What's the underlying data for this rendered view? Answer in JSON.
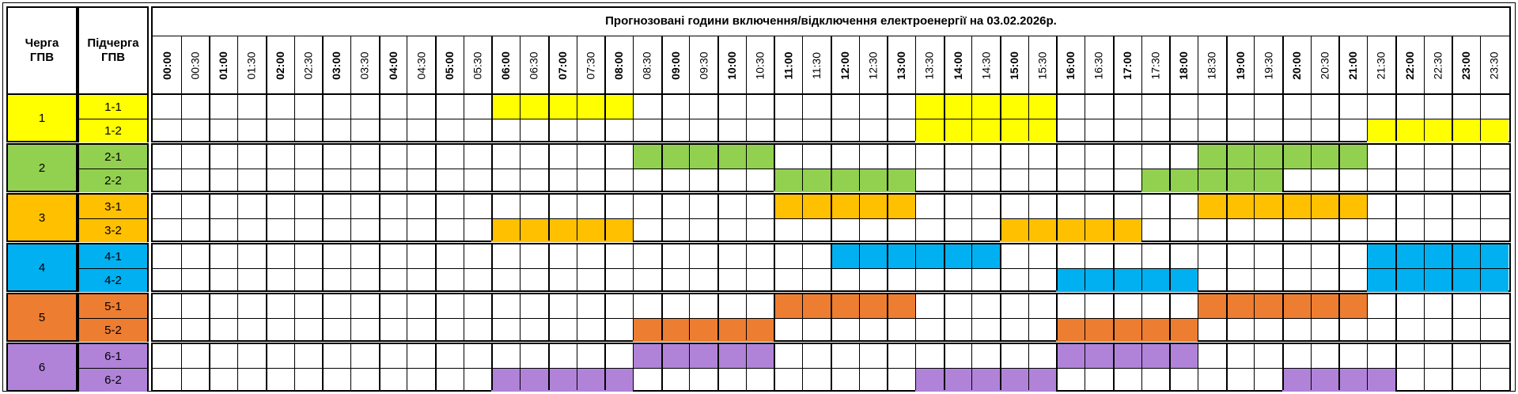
{
  "header": {
    "queue_label": "Черга\nГПВ",
    "subqueue_label": "Підчерга\nГПВ",
    "title": "Прогнозовані години включення/відключення електроенергії на 03.02.2026р."
  },
  "slots": [
    "00:00",
    "00:30",
    "01:00",
    "01:30",
    "02:00",
    "02:30",
    "03:00",
    "03:30",
    "04:00",
    "04:30",
    "05:00",
    "05:30",
    "06:00",
    "06:30",
    "07:00",
    "07:30",
    "08:00",
    "08:30",
    "09:00",
    "09:30",
    "10:00",
    "10:30",
    "11:00",
    "11:30",
    "12:00",
    "12:30",
    "13:00",
    "13:30",
    "14:00",
    "14:30",
    "15:00",
    "15:30",
    "16:00",
    "16:30",
    "17:00",
    "17:30",
    "18:00",
    "18:30",
    "19:00",
    "19:30",
    "20:00",
    "20:30",
    "21:00",
    "21:30",
    "22:00",
    "22:30",
    "23:00",
    "23:30"
  ],
  "queues": [
    {
      "label": "1",
      "color": "#ffff00",
      "subqueues": [
        {
          "label": "1-1",
          "outages": [
            [
              "06:00",
              "08:30"
            ],
            [
              "13:30",
              "16:00"
            ]
          ]
        },
        {
          "label": "1-2",
          "outages": [
            [
              "13:30",
              "16:00"
            ],
            [
              "21:30",
              "24:00"
            ]
          ]
        }
      ]
    },
    {
      "label": "2",
      "color": "#92d050",
      "subqueues": [
        {
          "label": "2-1",
          "outages": [
            [
              "08:30",
              "11:00"
            ],
            [
              "18:30",
              "21:30"
            ]
          ]
        },
        {
          "label": "2-2",
          "outages": [
            [
              "11:00",
              "13:30"
            ],
            [
              "17:30",
              "20:00"
            ]
          ]
        }
      ]
    },
    {
      "label": "3",
      "color": "#ffc000",
      "subqueues": [
        {
          "label": "3-1",
          "outages": [
            [
              "11:00",
              "13:30"
            ],
            [
              "18:30",
              "21:30"
            ]
          ]
        },
        {
          "label": "3-2",
          "outages": [
            [
              "06:00",
              "08:30"
            ],
            [
              "15:00",
              "17:30"
            ]
          ]
        }
      ]
    },
    {
      "label": "4",
      "color": "#00b0f0",
      "subqueues": [
        {
          "label": "4-1",
          "outages": [
            [
              "12:00",
              "15:00"
            ],
            [
              "21:30",
              "24:00"
            ]
          ]
        },
        {
          "label": "4-2",
          "outages": [
            [
              "16:00",
              "18:30"
            ],
            [
              "21:30",
              "24:00"
            ]
          ]
        }
      ]
    },
    {
      "label": "5",
      "color": "#ed7d31",
      "subqueues": [
        {
          "label": "5-1",
          "outages": [
            [
              "11:00",
              "13:30"
            ],
            [
              "18:30",
              "21:30"
            ]
          ]
        },
        {
          "label": "5-2",
          "outages": [
            [
              "08:30",
              "11:00"
            ],
            [
              "16:00",
              "18:30"
            ]
          ]
        }
      ]
    },
    {
      "label": "6",
      "color": "#b083d9",
      "subqueues": [
        {
          "label": "6-1",
          "outages": [
            [
              "08:30",
              "11:00"
            ],
            [
              "16:00",
              "18:30"
            ]
          ]
        },
        {
          "label": "6-2",
          "outages": [
            [
              "06:00",
              "08:30"
            ],
            [
              "13:30",
              "16:00"
            ],
            [
              "20:00",
              "22:00"
            ]
          ]
        }
      ]
    }
  ]
}
